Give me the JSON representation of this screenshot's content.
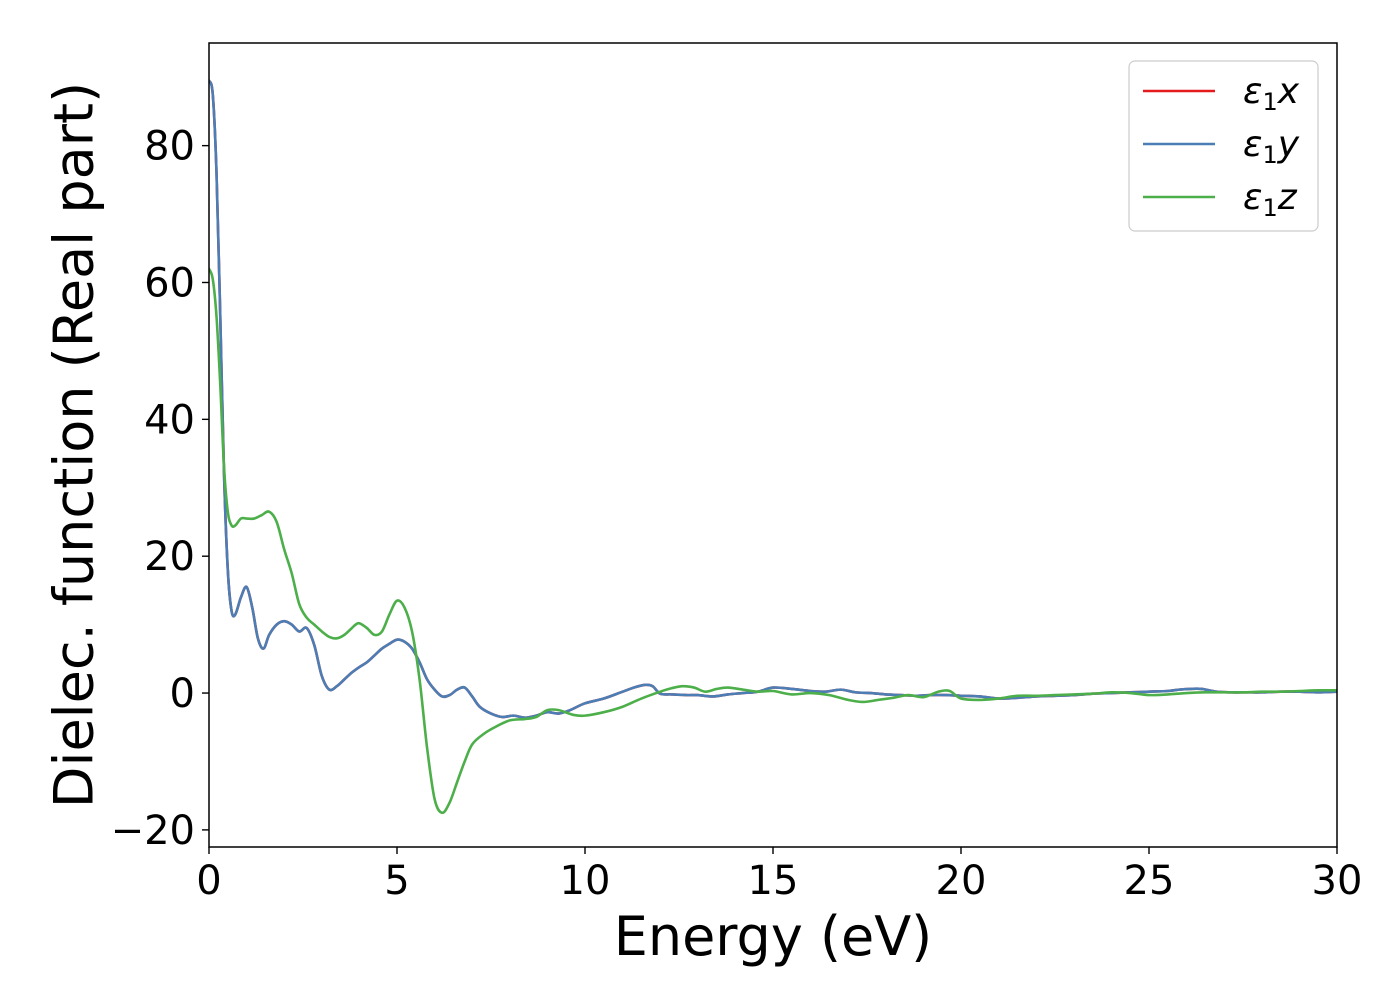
{
  "chart_data": {
    "type": "line",
    "xlabel": "Energy (eV)",
    "ylabel": "Dielec. function (Real part)",
    "xlim": [
      0,
      30
    ],
    "ylim": [
      -22.5,
      95
    ],
    "xticks": [
      0,
      5,
      10,
      15,
      20,
      25,
      30
    ],
    "xtick_labels": [
      "0",
      "5",
      "10",
      "15",
      "20",
      "25",
      "30"
    ],
    "yticks": [
      -20,
      0,
      20,
      40,
      60,
      80
    ],
    "ytick_labels": [
      "−20",
      "0",
      "20",
      "40",
      "60",
      "80"
    ],
    "grid": false,
    "legend_position": "top-right",
    "series": [
      {
        "name": "ε1x",
        "legend_main": "ε",
        "legend_sub": "1",
        "legend_var": "x",
        "color": "#e41a1c",
        "x": [
          0,
          0.1,
          0.2,
          0.3,
          0.4,
          0.5,
          0.6,
          0.7,
          0.85,
          1.0,
          1.15,
          1.3,
          1.45,
          1.6,
          1.8,
          2.0,
          2.2,
          2.4,
          2.6,
          2.8,
          3.0,
          3.2,
          3.4,
          3.6,
          3.8,
          4.0,
          4.2,
          4.4,
          4.6,
          4.8,
          5.0,
          5.2,
          5.4,
          5.6,
          5.8,
          6.0,
          6.2,
          6.4,
          6.6,
          6.8,
          7.0,
          7.2,
          7.5,
          7.8,
          8.1,
          8.4,
          8.7,
          9.0,
          9.3,
          9.6,
          10.0,
          10.5,
          11.0,
          11.3,
          11.6,
          11.8,
          12.0,
          12.3,
          12.7,
          13.0,
          13.4,
          13.8,
          14.2,
          14.6,
          15.0,
          15.5,
          16.0,
          16.4,
          16.8,
          17.2,
          17.6,
          18.0,
          18.4,
          18.8,
          19.2,
          19.6,
          20.0,
          20.5,
          21.0,
          21.5,
          22.0,
          22.5,
          23.0,
          23.5,
          24.0,
          24.5,
          25.0,
          25.5,
          25.8,
          26.1,
          26.4,
          26.8,
          27.2,
          27.6,
          28.0,
          28.5,
          29.0,
          29.5,
          30.0
        ],
        "values": [
          89.5,
          87.5,
          76.0,
          55.0,
          32.0,
          18.0,
          12.0,
          11.5,
          14.0,
          15.5,
          12.5,
          8.0,
          6.5,
          8.5,
          10.0,
          10.5,
          10.0,
          9.0,
          9.5,
          7.0,
          2.5,
          0.5,
          1.0,
          2.0,
          3.0,
          3.8,
          4.5,
          5.5,
          6.5,
          7.2,
          7.8,
          7.5,
          6.5,
          4.5,
          2.0,
          0.5,
          -0.5,
          -0.3,
          0.5,
          0.8,
          -0.5,
          -2.0,
          -3.0,
          -3.5,
          -3.3,
          -3.6,
          -3.3,
          -2.8,
          -3.0,
          -2.5,
          -1.5,
          -0.8,
          0.2,
          0.8,
          1.2,
          1.0,
          -0.1,
          -0.2,
          -0.3,
          -0.3,
          -0.5,
          -0.2,
          0.0,
          0.2,
          0.8,
          0.6,
          0.3,
          0.2,
          0.5,
          0.1,
          0.0,
          -0.2,
          -0.3,
          -0.4,
          -0.3,
          -0.3,
          -0.4,
          -0.5,
          -0.8,
          -0.7,
          -0.5,
          -0.4,
          -0.3,
          -0.1,
          0.0,
          0.1,
          0.2,
          0.3,
          0.5,
          0.6,
          0.6,
          0.2,
          0.1,
          0.1,
          0.1,
          0.2,
          0.2,
          0.1,
          0.2
        ]
      },
      {
        "name": "ε1y",
        "legend_main": "ε",
        "legend_sub": "1",
        "legend_var": "y",
        "color": "#4a7eb5",
        "x": [
          0,
          0.1,
          0.2,
          0.3,
          0.4,
          0.5,
          0.6,
          0.7,
          0.85,
          1.0,
          1.15,
          1.3,
          1.45,
          1.6,
          1.8,
          2.0,
          2.2,
          2.4,
          2.6,
          2.8,
          3.0,
          3.2,
          3.4,
          3.6,
          3.8,
          4.0,
          4.2,
          4.4,
          4.6,
          4.8,
          5.0,
          5.2,
          5.4,
          5.6,
          5.8,
          6.0,
          6.2,
          6.4,
          6.6,
          6.8,
          7.0,
          7.2,
          7.5,
          7.8,
          8.1,
          8.4,
          8.7,
          9.0,
          9.3,
          9.6,
          10.0,
          10.5,
          11.0,
          11.3,
          11.6,
          11.8,
          12.0,
          12.3,
          12.7,
          13.0,
          13.4,
          13.8,
          14.2,
          14.6,
          15.0,
          15.5,
          16.0,
          16.4,
          16.8,
          17.2,
          17.6,
          18.0,
          18.4,
          18.8,
          19.2,
          19.6,
          20.0,
          20.5,
          21.0,
          21.5,
          22.0,
          22.5,
          23.0,
          23.5,
          24.0,
          24.5,
          25.0,
          25.5,
          25.8,
          26.1,
          26.4,
          26.8,
          27.2,
          27.6,
          28.0,
          28.5,
          29.0,
          29.5,
          30.0
        ],
        "values": [
          89.5,
          87.5,
          76.0,
          55.0,
          32.0,
          18.0,
          12.0,
          11.5,
          14.0,
          15.5,
          12.5,
          8.0,
          6.5,
          8.5,
          10.0,
          10.5,
          10.0,
          9.0,
          9.5,
          7.0,
          2.5,
          0.5,
          1.0,
          2.0,
          3.0,
          3.8,
          4.5,
          5.5,
          6.5,
          7.2,
          7.8,
          7.5,
          6.5,
          4.5,
          2.0,
          0.5,
          -0.5,
          -0.3,
          0.5,
          0.8,
          -0.5,
          -2.0,
          -3.0,
          -3.5,
          -3.3,
          -3.6,
          -3.3,
          -2.8,
          -3.0,
          -2.5,
          -1.5,
          -0.8,
          0.2,
          0.8,
          1.2,
          1.0,
          -0.1,
          -0.2,
          -0.3,
          -0.3,
          -0.5,
          -0.2,
          0.0,
          0.2,
          0.8,
          0.6,
          0.3,
          0.2,
          0.5,
          0.1,
          0.0,
          -0.2,
          -0.3,
          -0.4,
          -0.3,
          -0.3,
          -0.4,
          -0.5,
          -0.8,
          -0.7,
          -0.5,
          -0.4,
          -0.3,
          -0.1,
          0.0,
          0.1,
          0.2,
          0.3,
          0.5,
          0.6,
          0.6,
          0.2,
          0.1,
          0.1,
          0.1,
          0.2,
          0.2,
          0.1,
          0.2
        ]
      },
      {
        "name": "ε1z",
        "legend_main": "ε",
        "legend_sub": "1",
        "legend_var": "z",
        "color": "#4daf4a",
        "x": [
          0,
          0.1,
          0.2,
          0.3,
          0.4,
          0.5,
          0.6,
          0.7,
          0.85,
          1.0,
          1.2,
          1.4,
          1.6,
          1.8,
          2.0,
          2.2,
          2.4,
          2.6,
          2.8,
          3.0,
          3.2,
          3.4,
          3.6,
          3.8,
          3.9,
          4.0,
          4.2,
          4.4,
          4.6,
          4.8,
          5.0,
          5.2,
          5.4,
          5.6,
          5.8,
          6.0,
          6.2,
          6.4,
          6.6,
          6.8,
          7.0,
          7.3,
          7.6,
          8.0,
          8.4,
          8.7,
          9.0,
          9.3,
          9.7,
          10.0,
          10.5,
          11.0,
          11.5,
          12.0,
          12.3,
          12.6,
          12.9,
          13.2,
          13.5,
          13.8,
          14.2,
          14.6,
          15.0,
          15.5,
          16.0,
          16.5,
          17.0,
          17.4,
          17.8,
          18.2,
          18.6,
          19.0,
          19.4,
          19.7,
          20.0,
          20.5,
          21.0,
          21.5,
          22.0,
          22.5,
          23.0,
          23.5,
          24.0,
          24.5,
          25.0,
          25.5,
          26.0,
          26.5,
          27.0,
          27.5,
          28.0,
          28.5,
          29.0,
          29.5,
          30.0
        ],
        "values": [
          62.0,
          60.5,
          55.0,
          45.0,
          33.0,
          26.5,
          24.5,
          24.5,
          25.5,
          25.5,
          25.5,
          26.0,
          26.5,
          25.0,
          21.0,
          17.5,
          13.0,
          11.0,
          10.0,
          9.0,
          8.2,
          8.0,
          8.5,
          9.5,
          10.0,
          10.2,
          9.5,
          8.5,
          9.0,
          11.5,
          13.5,
          12.5,
          9.0,
          2.0,
          -8.0,
          -15.5,
          -17.5,
          -16.0,
          -13.0,
          -10.0,
          -7.5,
          -6.0,
          -5.0,
          -4.0,
          -3.8,
          -3.5,
          -2.5,
          -2.5,
          -3.2,
          -3.3,
          -2.8,
          -2.0,
          -0.8,
          0.2,
          0.7,
          1.0,
          0.8,
          0.2,
          0.6,
          0.8,
          0.5,
          0.2,
          0.3,
          -0.2,
          0.0,
          -0.3,
          -1.0,
          -1.3,
          -1.0,
          -0.7,
          -0.3,
          -0.6,
          0.2,
          0.3,
          -0.8,
          -1.0,
          -0.8,
          -0.4,
          -0.4,
          -0.3,
          -0.2,
          -0.1,
          0.1,
          0.0,
          -0.3,
          -0.2,
          0.0,
          0.1,
          0.1,
          0.1,
          0.2,
          0.2,
          0.3,
          0.4,
          0.4
        ]
      }
    ]
  }
}
